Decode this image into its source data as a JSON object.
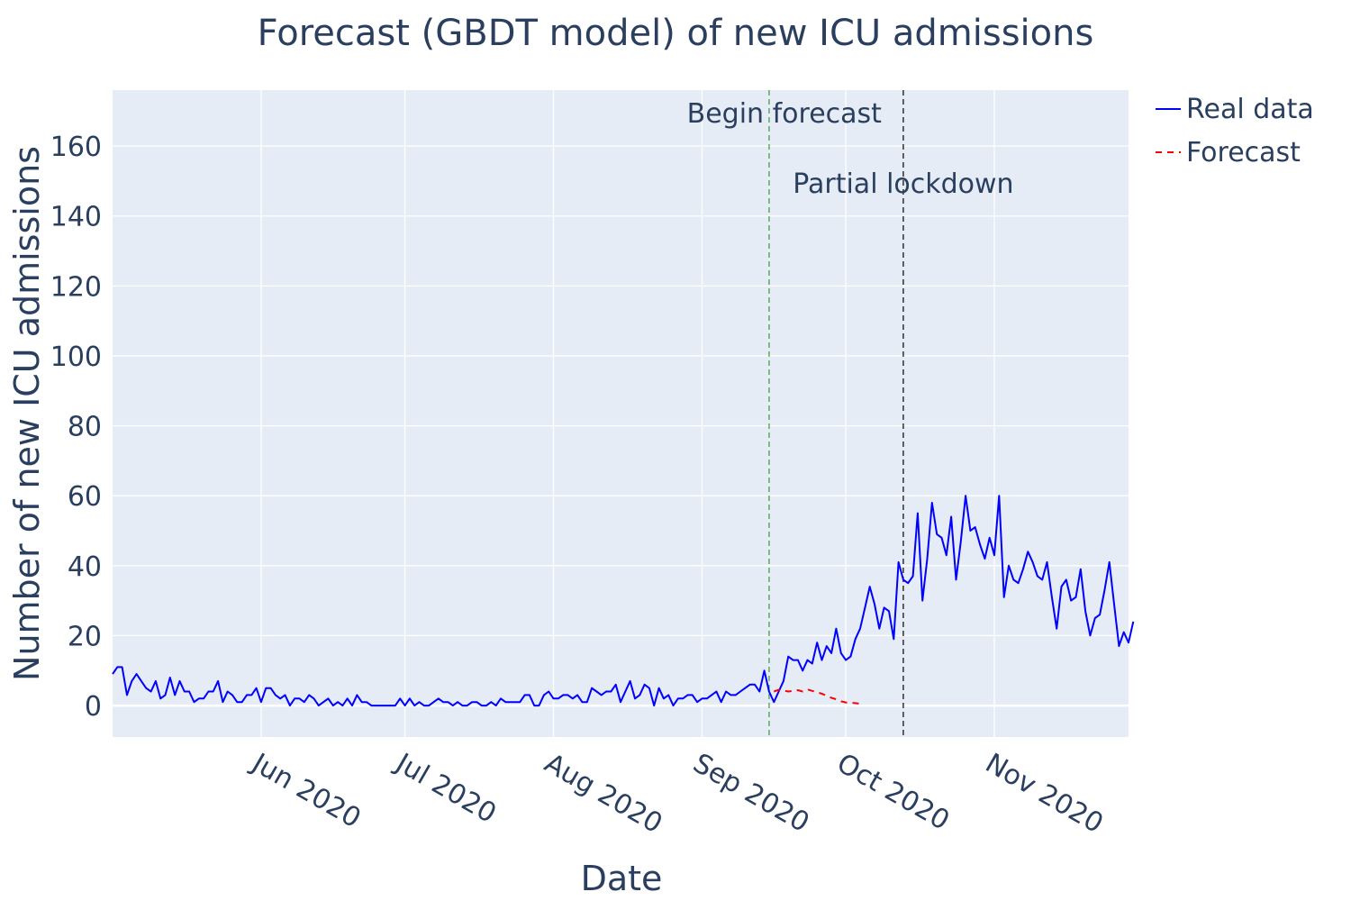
{
  "chart_data": {
    "type": "line",
    "title": "Forecast (GBDT model) of new ICU admissions",
    "xlabel": "Date",
    "ylabel": "Number of new ICU admissions",
    "x_range": [
      "2020-05-01",
      "2020-11-29"
    ],
    "ylim": [
      -9,
      176
    ],
    "y_ticks": [
      0,
      20,
      40,
      60,
      80,
      100,
      120,
      140,
      160
    ],
    "x_ticks": [
      {
        "date": "2020-06-01",
        "label": "Jun 2020"
      },
      {
        "date": "2020-07-01",
        "label": "Jul 2020"
      },
      {
        "date": "2020-08-01",
        "label": "Aug 2020"
      },
      {
        "date": "2020-09-01",
        "label": "Sep 2020"
      },
      {
        "date": "2020-10-01",
        "label": "Oct 2020"
      },
      {
        "date": "2020-11-01",
        "label": "Nov 2020"
      }
    ],
    "grid": true,
    "plot_background": "#e5ecf6",
    "legend_position": "top-right, outside plot",
    "series": [
      {
        "name": "Real data",
        "color": "#0000ff",
        "dash": "solid",
        "start_date": "2020-05-01",
        "values": [
          9,
          11,
          11,
          3,
          7,
          9,
          7,
          5,
          4,
          7,
          2,
          3,
          8,
          3,
          7,
          4,
          4,
          1,
          2,
          2,
          4,
          4,
          7,
          1,
          4,
          3,
          1,
          1,
          3,
          3,
          5,
          1,
          5,
          5,
          3,
          2,
          3,
          0,
          2,
          2,
          1,
          3,
          2,
          0,
          1,
          2,
          0,
          1,
          0,
          2,
          0,
          3,
          1,
          1,
          0,
          0,
          0,
          0,
          0,
          0,
          2,
          0,
          2,
          0,
          1,
          0,
          0,
          1,
          2,
          1,
          1,
          0,
          1,
          0,
          0,
          1,
          1,
          0,
          0,
          1,
          0,
          2,
          1,
          1,
          1,
          1,
          3,
          3,
          0,
          0,
          3,
          4,
          2,
          2,
          3,
          3,
          2,
          3,
          1,
          1,
          5,
          4,
          3,
          4,
          4,
          6,
          1,
          4,
          7,
          2,
          3,
          6,
          5,
          0,
          5,
          2,
          3,
          0,
          2,
          2,
          3,
          3,
          1,
          2,
          2,
          3,
          4,
          1,
          4,
          3,
          3,
          4,
          5,
          6,
          6,
          4,
          10,
          4,
          1,
          4,
          7,
          14,
          13,
          13,
          10,
          13,
          12,
          18,
          13,
          17,
          15,
          22,
          15,
          13,
          14,
          19,
          22,
          28,
          34,
          29,
          22,
          28,
          27,
          19,
          41,
          36,
          35,
          37,
          55,
          30,
          42,
          58,
          49,
          48,
          43,
          54,
          36,
          47,
          60,
          50,
          51,
          46,
          42,
          48,
          43,
          60,
          31,
          40,
          36,
          35,
          39,
          44,
          41,
          37,
          36,
          41,
          31,
          22,
          34,
          36,
          30,
          31,
          39,
          27,
          20,
          25,
          26,
          33,
          41,
          29,
          17,
          21,
          18,
          24
        ]
      },
      {
        "name": "Forecast",
        "color": "#ff0000",
        "dash": "dashed",
        "start_date": "2020-09-16",
        "values": [
          4,
          4.5,
          4.3,
          4,
          4.2,
          4.4,
          4,
          4.6,
          4.2,
          3.8,
          3.4,
          2.8,
          2.2,
          1.8,
          1.2,
          0.9,
          0.8,
          0.7,
          0.5
        ]
      }
    ],
    "annotations": [
      {
        "label": "Begin forecast",
        "date": "2020-09-15",
        "line_color": "#3a9a3a",
        "line_dash": "dashed"
      },
      {
        "label": "Partial lockdown",
        "date": "2020-10-13",
        "line_color": "#000000",
        "line_dash": "dashed"
      }
    ]
  }
}
